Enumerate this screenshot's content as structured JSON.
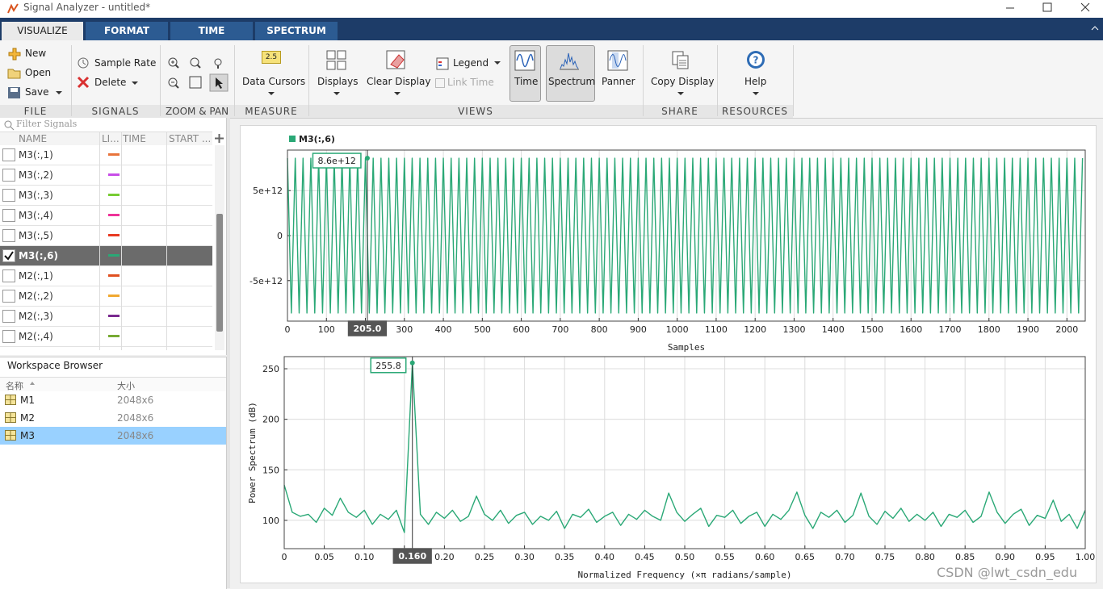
{
  "window": {
    "title": "Signal Analyzer - untitled*"
  },
  "tabs": [
    "VISUALIZE",
    "FORMAT",
    "TIME",
    "SPECTRUM"
  ],
  "ribbon": {
    "sections": [
      {
        "label": "FILE",
        "buttons": [
          "New",
          "Open",
          "Save"
        ]
      },
      {
        "label": "SIGNALS",
        "buttons": [
          "Sample Rate",
          "Delete"
        ]
      },
      {
        "label": "ZOOM & PAN"
      },
      {
        "label": "MEASURE",
        "buttons": [
          "Data Cursors"
        ],
        "icon_text": "2.5"
      },
      {
        "label": "VIEWS",
        "buttons": [
          "Displays",
          "Clear Display",
          "Legend",
          "Link Time",
          "Time",
          "Spectrum",
          "Panner"
        ]
      },
      {
        "label": "SHARE",
        "buttons": [
          "Copy Display"
        ]
      },
      {
        "label": "RESOURCES",
        "buttons": [
          "Help"
        ]
      }
    ]
  },
  "signals_table": {
    "filter": "Filter Signals",
    "columns": [
      "NAME",
      "LI...",
      "TIME",
      "START ..."
    ],
    "selected_row": 5,
    "rows": [
      {
        "name": "M3(:,1)",
        "color": "#e8743b"
      },
      {
        "name": "M3(:,2)",
        "color": "#c84ee8"
      },
      {
        "name": "M3(:,3)",
        "color": "#77cc33"
      },
      {
        "name": "M3(:,4)",
        "color": "#ee3399"
      },
      {
        "name": "M3(:,5)",
        "color": "#e83a22"
      },
      {
        "name": "M3(:,6)",
        "color": "#2aa876"
      },
      {
        "name": "M2(:,1)",
        "color": "#e05020"
      },
      {
        "name": "M2(:,2)",
        "color": "#f0a830"
      },
      {
        "name": "M2(:,3)",
        "color": "#7a2a90"
      },
      {
        "name": "M2(:,4)",
        "color": "#77aa33"
      }
    ]
  },
  "workspace": {
    "title": "Workspace Browser",
    "columns": [
      "名称",
      "大小"
    ],
    "selected_row": 2,
    "rows": [
      {
        "name": "M1",
        "size": "2048x6"
      },
      {
        "name": "M2",
        "size": "2048x6"
      },
      {
        "name": "M3",
        "size": "2048x6"
      }
    ]
  },
  "watermark": "CSDN @lwt_csdn_edu",
  "chart_data": [
    {
      "type": "line",
      "xlabel": "Samples",
      "xlim": [
        0,
        2047
      ],
      "ylim": [
        -9500000000000.0,
        9500000000000.0
      ],
      "xticks": [
        0,
        100,
        200,
        300,
        400,
        500,
        600,
        700,
        800,
        900,
        1000,
        1100,
        1200,
        1300,
        1400,
        1500,
        1600,
        1700,
        1800,
        1900,
        2000
      ],
      "yticks": [
        {
          "value": -5000000000000.0,
          "label": "-5e+12"
        },
        0,
        {
          "value": 5000000000000.0,
          "label": "5e+12"
        }
      ],
      "grid": true,
      "cursor": {
        "x": 205,
        "x_label": "205.0",
        "y": 8600000000000.0,
        "y_label": "8.6e+12"
      },
      "x": [
        0,
        10,
        20,
        30,
        40,
        50,
        60,
        70,
        80,
        90,
        100,
        110,
        120,
        130,
        140,
        150,
        160,
        170,
        180,
        190,
        200,
        210,
        220,
        230,
        240,
        250,
        260,
        270,
        280,
        290,
        300,
        310,
        320,
        330,
        340,
        350,
        360,
        370,
        380,
        390,
        400,
        410,
        420,
        430,
        440,
        450,
        460,
        470,
        480,
        490,
        500,
        510,
        520,
        530,
        540,
        550,
        560,
        570,
        580,
        590,
        600,
        610,
        620,
        630,
        640,
        650,
        660,
        670,
        680,
        690,
        700,
        710,
        720,
        730,
        740,
        750,
        760,
        770,
        780,
        790,
        800,
        810,
        820,
        830,
        840,
        850,
        860,
        870,
        880,
        890,
        900,
        910,
        920,
        930,
        940,
        950,
        960,
        970,
        980,
        990,
        1000,
        1010,
        1020,
        1030,
        1040,
        1050,
        1060,
        1070,
        1080,
        1090,
        1100,
        1110,
        1120,
        1130,
        1140,
        1150,
        1160,
        1170,
        1180,
        1190,
        1200,
        1210,
        1220,
        1230,
        1240,
        1250,
        1260,
        1270,
        1280,
        1290,
        1300,
        1310,
        1320,
        1330,
        1340,
        1350,
        1360,
        1370,
        1380,
        1390,
        1400,
        1410,
        1420,
        1430,
        1440,
        1450,
        1460,
        1470,
        1480,
        1490,
        1500,
        1510,
        1520,
        1530,
        1540,
        1550,
        1560,
        1570,
        1580,
        1590,
        1600,
        1610,
        1620,
        1630,
        1640,
        1650,
        1660,
        1670,
        1680,
        1690,
        1700,
        1710,
        1720,
        1730,
        1740,
        1750,
        1760,
        1770,
        1780,
        1790,
        1800,
        1810,
        1820,
        1830,
        1840,
        1850,
        1860,
        1870,
        1880,
        1890,
        1900,
        1910,
        1920,
        1930,
        1940,
        1950,
        1960,
        1970,
        1980,
        1990,
        2000,
        2010,
        2020,
        2030,
        2040
      ],
      "series": [
        {
          "name": "M3(:,6)",
          "color": "#2aa876",
          "values": [
            8600000000000.0,
            -8600000000000.0,
            8600000000000.0,
            -8600000000000.0,
            8600000000000.0,
            -8600000000000.0,
            8600000000000.0,
            -8600000000000.0,
            8600000000000.0,
            -8600000000000.0,
            8600000000000.0,
            -8600000000000.0,
            8600000000000.0,
            -8600000000000.0,
            8600000000000.0,
            -8600000000000.0,
            8600000000000.0,
            -8600000000000.0,
            8600000000000.0,
            -8600000000000.0,
            8600000000000.0,
            -8600000000000.0,
            8600000000000.0,
            -8600000000000.0,
            8600000000000.0,
            -8600000000000.0,
            8600000000000.0,
            -8600000000000.0,
            8600000000000.0,
            -8600000000000.0,
            8600000000000.0,
            -8600000000000.0,
            8600000000000.0,
            -8600000000000.0,
            8600000000000.0,
            -8600000000000.0,
            8600000000000.0,
            -8600000000000.0,
            8600000000000.0,
            -8600000000000.0,
            8600000000000.0,
            -8600000000000.0,
            8600000000000.0,
            -8600000000000.0,
            8600000000000.0,
            -8600000000000.0,
            8600000000000.0,
            -8600000000000.0,
            8600000000000.0,
            -8600000000000.0,
            8600000000000.0,
            -8600000000000.0,
            8600000000000.0,
            -8600000000000.0,
            8600000000000.0,
            -8600000000000.0,
            8600000000000.0,
            -8600000000000.0,
            8600000000000.0,
            -8600000000000.0,
            8600000000000.0,
            -8600000000000.0,
            8600000000000.0,
            -8600000000000.0,
            8600000000000.0,
            -8600000000000.0,
            8600000000000.0,
            -8600000000000.0,
            8600000000000.0,
            -8600000000000.0,
            8600000000000.0,
            -8600000000000.0,
            8600000000000.0,
            -8600000000000.0,
            8600000000000.0,
            -8600000000000.0,
            8600000000000.0,
            -8600000000000.0,
            8600000000000.0,
            -8600000000000.0,
            8600000000000.0,
            -8600000000000.0,
            8600000000000.0,
            -8600000000000.0,
            8600000000000.0,
            -8600000000000.0,
            8600000000000.0,
            -8600000000000.0,
            8600000000000.0,
            -8600000000000.0,
            8600000000000.0,
            -8600000000000.0,
            8600000000000.0,
            -8600000000000.0,
            8600000000000.0,
            -8600000000000.0,
            8600000000000.0,
            -8600000000000.0,
            8600000000000.0,
            -8600000000000.0,
            8600000000000.0,
            -8600000000000.0,
            8600000000000.0,
            -8600000000000.0,
            8600000000000.0,
            -8600000000000.0,
            8600000000000.0,
            -8600000000000.0,
            8600000000000.0,
            -8600000000000.0,
            8600000000000.0,
            -8600000000000.0,
            8600000000000.0,
            -8600000000000.0,
            8600000000000.0,
            -8600000000000.0,
            8600000000000.0,
            -8600000000000.0,
            8600000000000.0,
            -8600000000000.0,
            8600000000000.0,
            -8600000000000.0,
            8600000000000.0,
            -8600000000000.0,
            8600000000000.0,
            -8600000000000.0,
            8600000000000.0,
            -8600000000000.0,
            8600000000000.0,
            -8600000000000.0,
            8600000000000.0,
            -8600000000000.0,
            8600000000000.0,
            -8600000000000.0,
            8600000000000.0,
            -8600000000000.0,
            8600000000000.0,
            -8600000000000.0,
            8600000000000.0,
            -8600000000000.0,
            8600000000000.0,
            -8600000000000.0,
            8600000000000.0,
            -8600000000000.0,
            8600000000000.0,
            -8600000000000.0,
            8600000000000.0,
            -8600000000000.0,
            8600000000000.0,
            -8600000000000.0,
            8600000000000.0,
            -8600000000000.0,
            8600000000000.0,
            -8600000000000.0,
            8600000000000.0,
            -8600000000000.0,
            8600000000000.0,
            -8600000000000.0,
            8600000000000.0,
            -8600000000000.0,
            8600000000000.0,
            -8600000000000.0,
            8600000000000.0,
            -8600000000000.0,
            8600000000000.0,
            -8600000000000.0,
            8600000000000.0,
            -8600000000000.0,
            8600000000000.0,
            -8600000000000.0,
            8600000000000.0,
            -8600000000000.0,
            8600000000000.0,
            -8600000000000.0,
            8600000000000.0,
            -8600000000000.0,
            8600000000000.0,
            -8600000000000.0,
            8600000000000.0,
            -8600000000000.0,
            8600000000000.0,
            -8600000000000.0,
            8600000000000.0,
            -8600000000000.0,
            8600000000000.0,
            -8600000000000.0,
            8600000000000.0,
            -8600000000000.0,
            8600000000000.0,
            -8600000000000.0,
            8600000000000.0,
            -8600000000000.0,
            8600000000000.0,
            -8600000000000.0,
            8600000000000.0,
            -8600000000000.0,
            8600000000000.0,
            -8600000000000.0,
            8600000000000.0,
            -8600000000000.0,
            8600000000000.0,
            -8600000000000.0,
            8600000000000.0,
            -8600000000000.0,
            8600000000000.0
          ]
        }
      ]
    },
    {
      "type": "line",
      "xlabel": "Normalized Frequency (×π radians/sample)",
      "ylabel": "Power Spectrum (dB)",
      "color": "#2aa876",
      "xlim": [
        0,
        1
      ],
      "ylim": [
        72,
        262
      ],
      "xticks": [
        0,
        0.05,
        {
          "value": 0.1,
          "label": "0.10"
        },
        0.15,
        {
          "value": 0.2,
          "label": "0.20"
        },
        0.25,
        {
          "value": 0.3,
          "label": "0.30"
        },
        0.35,
        {
          "value": 0.4,
          "label": "0.40"
        },
        0.45,
        {
          "value": 0.5,
          "label": "0.50"
        },
        0.55,
        {
          "value": 0.6,
          "label": "0.60"
        },
        0.65,
        {
          "value": 0.7,
          "label": "0.70"
        },
        0.75,
        {
          "value": 0.8,
          "label": "0.80"
        },
        0.85,
        {
          "value": 0.9,
          "label": "0.90"
        },
        0.95,
        {
          "value": 1,
          "label": "1.00"
        }
      ],
      "yticks": [
        100,
        150,
        200,
        250
      ],
      "grid": true,
      "cursor": {
        "x": 0.16,
        "x_label": "0.160",
        "y": 255.8,
        "y_label": "255.8"
      },
      "x": [
        0,
        0.01,
        0.02,
        0.03,
        0.04,
        0.05,
        0.06,
        0.07,
        0.08,
        0.09,
        0.1,
        0.11,
        0.12,
        0.13,
        0.14,
        0.15,
        0.16,
        0.17,
        0.18,
        0.19,
        0.2,
        0.21,
        0.22,
        0.23,
        0.24,
        0.25,
        0.26,
        0.27,
        0.28,
        0.29,
        0.3,
        0.31,
        0.32,
        0.33,
        0.34,
        0.35,
        0.36,
        0.37,
        0.38,
        0.39,
        0.4,
        0.41,
        0.42,
        0.43,
        0.44,
        0.45,
        0.46,
        0.47,
        0.48,
        0.49,
        0.5,
        0.51,
        0.52,
        0.53,
        0.54,
        0.55,
        0.56,
        0.57,
        0.58,
        0.59,
        0.6,
        0.61,
        0.62,
        0.63,
        0.64,
        0.65,
        0.66,
        0.67,
        0.68,
        0.69,
        0.7,
        0.71,
        0.72,
        0.73,
        0.74,
        0.75,
        0.76,
        0.77,
        0.78,
        0.79,
        0.8,
        0.81,
        0.82,
        0.83,
        0.84,
        0.85,
        0.86,
        0.87,
        0.88,
        0.89,
        0.9,
        0.91,
        0.92,
        0.93,
        0.94,
        0.95,
        0.96,
        0.97,
        0.98,
        0.99,
        1
      ],
      "values": [
        135,
        108,
        104,
        106,
        98,
        112,
        105,
        122,
        108,
        103,
        110,
        96,
        106,
        101,
        110,
        88,
        255.8,
        106,
        96,
        108,
        102,
        110,
        99,
        104,
        124,
        106,
        100,
        110,
        97,
        105,
        108,
        96,
        104,
        100,
        109,
        92,
        106,
        103,
        111,
        98,
        104,
        108,
        95,
        106,
        101,
        110,
        104,
        100,
        127,
        108,
        99,
        106,
        112,
        94,
        105,
        103,
        110,
        97,
        104,
        108,
        94,
        106,
        101,
        110,
        128,
        105,
        92,
        108,
        103,
        110,
        98,
        105,
        127,
        104,
        96,
        109,
        102,
        112,
        99,
        106,
        100,
        108,
        94,
        106,
        103,
        110,
        98,
        104,
        128,
        108,
        97,
        106,
        111,
        95,
        105,
        102,
        120,
        99,
        106,
        92,
        110
      ]
    }
  ]
}
